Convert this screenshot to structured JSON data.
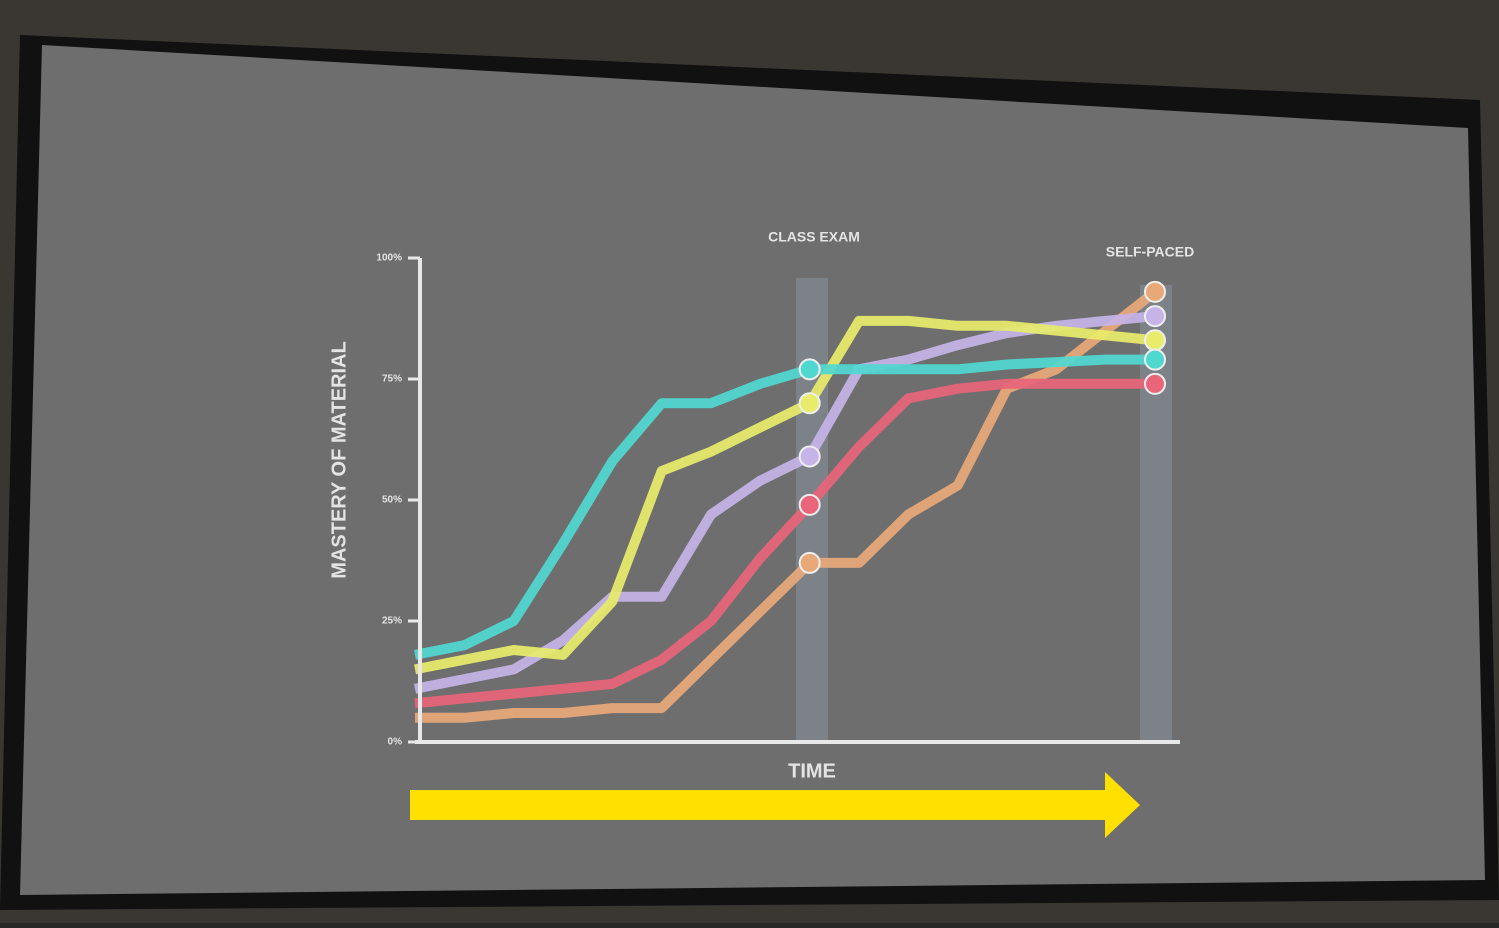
{
  "chart_data": {
    "type": "line",
    "y_label": "MASTERY OF MATERIAL",
    "x_label": "TIME",
    "annotations": [
      "CLASS EXAM",
      "SELF-PACED"
    ],
    "categories": [
      null,
      null,
      null,
      null,
      null,
      null,
      null,
      null,
      null,
      null,
      null,
      null,
      null,
      null,
      null,
      null
    ],
    "ylim": [
      0,
      100
    ],
    "yticks": [
      {
        "value": 0,
        "label": "0%"
      },
      {
        "value": 25,
        "label": "25%"
      },
      {
        "value": 50,
        "label": "50%"
      },
      {
        "value": 75,
        "label": "75%"
      },
      {
        "value": 100,
        "label": "100%"
      }
    ],
    "series": [
      {
        "color": "#e8a878",
        "values": [
          5,
          5,
          6,
          6,
          7,
          7,
          17,
          27,
          37,
          37,
          47,
          53,
          73,
          77,
          85,
          93
        ]
      },
      {
        "color": "#e8657a",
        "values": [
          8,
          9,
          10,
          11,
          12,
          17,
          25,
          38,
          49,
          61,
          71,
          73,
          74,
          74,
          74,
          74
        ]
      },
      {
        "color": "#c6b4e8",
        "values": [
          11,
          13,
          15,
          21,
          30,
          30,
          47,
          54,
          59,
          77,
          79,
          82,
          84.5,
          86,
          87,
          88
        ]
      },
      {
        "color": "#e8ec6a",
        "values": [
          15,
          17,
          19,
          18,
          29,
          56,
          60,
          65,
          70,
          87,
          87,
          86,
          86,
          85,
          84,
          83
        ]
      },
      {
        "color": "#4fd8d0",
        "values": [
          18,
          20,
          25,
          41,
          58,
          70,
          70,
          74,
          77,
          77,
          77,
          77,
          78,
          78.5,
          79,
          79
        ]
      }
    ]
  }
}
